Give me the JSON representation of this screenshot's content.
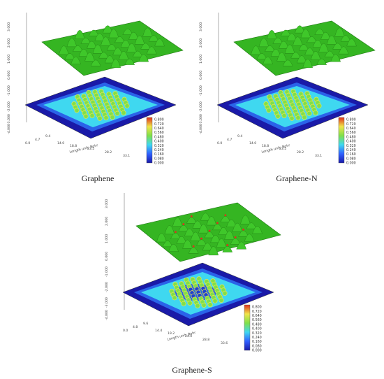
{
  "panels": [
    {
      "id": "graphene",
      "caption": "Graphene",
      "z_ticks": [
        "3.000",
        "2.000",
        "1.000",
        "0.000",
        "-1.000",
        "-2.000",
        "-3.000",
        "-4.000"
      ],
      "x_ticks": [
        "0.0",
        "4.7",
        "9.4",
        "14.0",
        "18.8",
        "23.5",
        "28.2",
        "33.1"
      ],
      "y_ticks": [
        "0.0",
        "4.7",
        "9.4",
        "14.0",
        "18.8",
        "23.5",
        "28.2",
        "33.1"
      ],
      "x_axis_label": "Length unit: Bohr",
      "colorbar": [
        "0.800",
        "0.720",
        "0.640",
        "0.560",
        "0.480",
        "0.400",
        "0.320",
        "0.240",
        "0.160",
        "0.080",
        "0.000"
      ],
      "peaks": 46
    },
    {
      "id": "graphene-n",
      "caption": "Graphene-N",
      "z_ticks": [
        "3.000",
        "2.000",
        "1.000",
        "0.000",
        "-1.000",
        "-2.000",
        "-3.000",
        "-4.000"
      ],
      "x_ticks": [
        "0.0",
        "4.7",
        "9.4",
        "14.0",
        "18.8",
        "23.5",
        "28.2",
        "33.1"
      ],
      "y_ticks": [
        "0.0",
        "4.7",
        "9.4",
        "14.0",
        "18.8",
        "23.5",
        "28.2",
        "33.1"
      ],
      "x_axis_label": "Length unit: Bohr",
      "colorbar": [
        "0.800",
        "0.720",
        "0.640",
        "0.560",
        "0.480",
        "0.400",
        "0.320",
        "0.240",
        "0.160",
        "0.080",
        "0.000"
      ],
      "peaks": 46
    },
    {
      "id": "graphene-s",
      "caption": "Graphene-S",
      "z_ticks": [
        "3.000",
        "2.000",
        "1.000",
        "0.000",
        "-1.000",
        "-2.000",
        "-3.000",
        "-4.000"
      ],
      "x_ticks": [
        "0.0",
        "4.8",
        "9.6",
        "14.4",
        "19.2",
        "24.0",
        "28.8",
        "33.6"
      ],
      "y_ticks": [
        "0.0",
        "4.8",
        "9.6",
        "14.4",
        "19.2",
        "24.0",
        "28.8",
        "33.6"
      ],
      "x_axis_label": "Length unit: Bohr",
      "colorbar": [
        "0.800",
        "0.720",
        "0.640",
        "0.560",
        "0.480",
        "0.400",
        "0.320",
        "0.240",
        "0.160",
        "0.080",
        "0.000"
      ],
      "peaks": 46
    }
  ],
  "colors": {
    "surface_green": "#3fc72a",
    "surface_dark": "#1f7a12",
    "map_background": "#1a1aa8",
    "map_cyan": "#3fd8f0",
    "map_green": "#7fe04a",
    "map_yellow": "#f0e44a",
    "map_red": "#e0301c"
  }
}
